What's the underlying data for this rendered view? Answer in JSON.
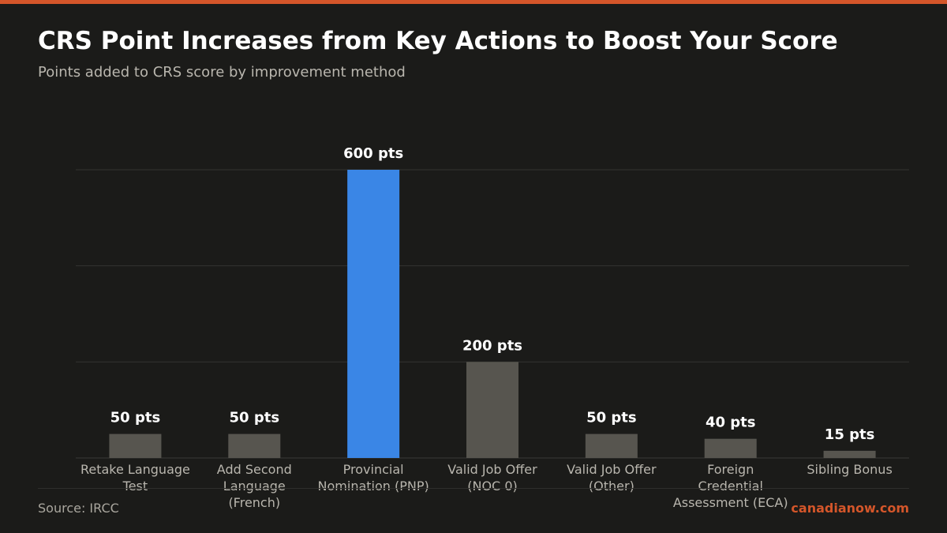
{
  "header": {
    "title": "CRS Point Increases from Key Actions to Boost Your Score",
    "subtitle": "Points added to CRS score by improvement method"
  },
  "footer": {
    "source": "Source: IRCC",
    "brand": "canadianow.com"
  },
  "colors": {
    "accent": "#d4562a",
    "highlight_bar": "#3a86e6",
    "default_bar": "#57554f"
  },
  "chart_data": {
    "type": "bar",
    "categories": [
      [
        "Retake Language",
        "Test"
      ],
      [
        "Add Second",
        "Language",
        "(French)"
      ],
      [
        "Provincial",
        "Nomination (PNP)"
      ],
      [
        "Valid Job Offer",
        "(NOC 0)"
      ],
      [
        "Valid Job Offer",
        "(Other)"
      ],
      [
        "Foreign",
        "Credential",
        "Assessment (ECA)"
      ],
      [
        "Sibling Bonus"
      ]
    ],
    "values": [
      50,
      50,
      600,
      200,
      50,
      40,
      15
    ],
    "data_labels": [
      "50 pts",
      "50 pts",
      "600 pts",
      "200 pts",
      "50 pts",
      "40 pts",
      "15 pts"
    ],
    "highlight_index": 2,
    "ylim": [
      0,
      600
    ],
    "yticks": [
      0,
      200,
      400,
      600
    ],
    "grid": true,
    "legend": "none"
  }
}
